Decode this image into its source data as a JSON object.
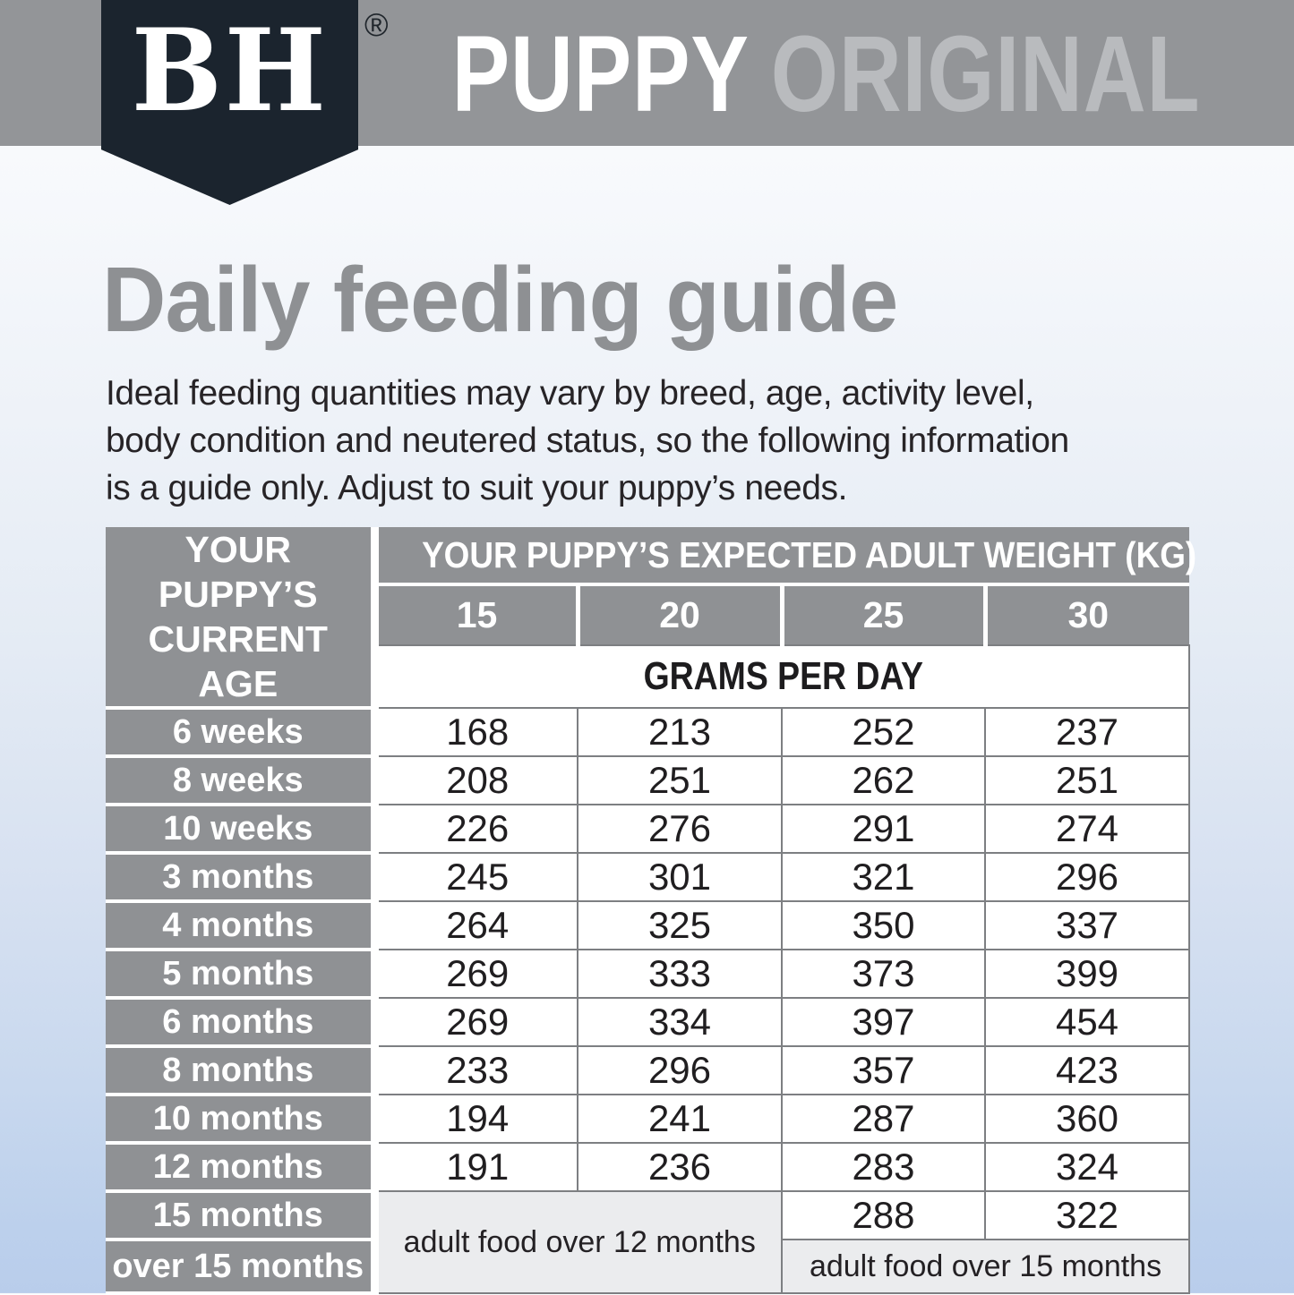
{
  "brand": {
    "logo_text": "BH",
    "registered_mark": "®"
  },
  "banner": {
    "title_primary": "PUPPY",
    "title_secondary": "ORIGINAL"
  },
  "page": {
    "heading": "Daily feeding guide",
    "intro_lines": [
      "Ideal feeding quantities may vary by breed, age, activity level,",
      "body condition and neutered status, so the following information",
      "is a guide only. Adjust to suit your puppy’s needs."
    ]
  },
  "table": {
    "age_header_lines": [
      "YOUR PUPPY’S",
      "CURRENT AGE"
    ],
    "weight_header": "YOUR PUPPY’S EXPECTED ADULT WEIGHT (KG)",
    "weight_columns": [
      "15",
      "20",
      "25",
      "30"
    ],
    "grams_header": "GRAMS PER DAY",
    "rows": [
      {
        "label": "6 weeks",
        "cells": [
          {
            "text": "168"
          },
          {
            "text": "213"
          },
          {
            "text": "252"
          },
          {
            "text": "237"
          }
        ]
      },
      {
        "label": "8 weeks",
        "cells": [
          {
            "text": "208"
          },
          {
            "text": "251"
          },
          {
            "text": "262"
          },
          {
            "text": "251"
          }
        ]
      },
      {
        "label": "10 weeks",
        "cells": [
          {
            "text": "226"
          },
          {
            "text": "276"
          },
          {
            "text": "291"
          },
          {
            "text": "274"
          }
        ]
      },
      {
        "label": "3 months",
        "cells": [
          {
            "text": "245"
          },
          {
            "text": "301"
          },
          {
            "text": "321"
          },
          {
            "text": "296"
          }
        ]
      },
      {
        "label": "4 months",
        "cells": [
          {
            "text": "264"
          },
          {
            "text": "325"
          },
          {
            "text": "350"
          },
          {
            "text": "337"
          }
        ]
      },
      {
        "label": "5 months",
        "cells": [
          {
            "text": "269"
          },
          {
            "text": "333"
          },
          {
            "text": "373"
          },
          {
            "text": "399"
          }
        ]
      },
      {
        "label": "6 months",
        "cells": [
          {
            "text": "269"
          },
          {
            "text": "334"
          },
          {
            "text": "397"
          },
          {
            "text": "454"
          }
        ]
      },
      {
        "label": "8 months",
        "cells": [
          {
            "text": "233"
          },
          {
            "text": "296"
          },
          {
            "text": "357"
          },
          {
            "text": "423"
          }
        ]
      },
      {
        "label": "10 months",
        "cells": [
          {
            "text": "194"
          },
          {
            "text": "241"
          },
          {
            "text": "287"
          },
          {
            "text": "360"
          }
        ]
      },
      {
        "label": "12 months",
        "cells": [
          {
            "text": "191"
          },
          {
            "text": "236"
          },
          {
            "text": "283"
          },
          {
            "text": "324"
          }
        ]
      },
      {
        "label": "15 months",
        "cells": [
          {
            "text": "adult food over 12 months",
            "type": "note",
            "colspan": 2,
            "rowspan": 2
          },
          {
            "text": "288"
          },
          {
            "text": "322"
          }
        ]
      },
      {
        "label": "over 15 months",
        "cells": [
          {
            "text": "adult food over 15 months",
            "type": "note",
            "colspan": 2
          }
        ]
      }
    ]
  },
  "colors": {
    "bar_gray": "#939598",
    "badge_navy": "#1b242e",
    "title_secondary": "#b9bbbe",
    "heading_gray": "#8e9093",
    "cell_gray": "#8f9194",
    "border_gray": "#7d7f82",
    "note_bg": "#ebecee",
    "text_dark": "#272427"
  }
}
